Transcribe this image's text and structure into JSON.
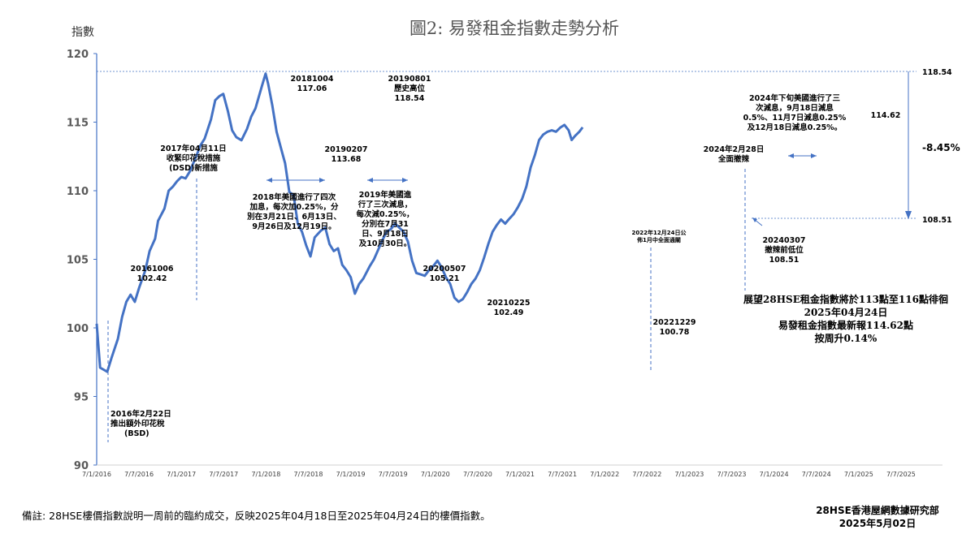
{
  "chart_data": {
    "type": "line",
    "title": "圖2: 易發租金指數走勢分析",
    "ylabel": "指數",
    "ylim": [
      90,
      120
    ],
    "yticks": [
      "90",
      "95",
      "100",
      "105",
      "110",
      "115",
      "120"
    ],
    "xticks": [
      "7/1/2016",
      "7/7/2016",
      "7/1/2017",
      "7/7/2017",
      "7/1/2018",
      "7/7/2018",
      "7/1/2019",
      "7/7/2019",
      "7/1/2020",
      "7/7/2020",
      "7/1/2021",
      "7/7/2021",
      "7/1/2022",
      "7/7/2022",
      "7/1/2023",
      "7/7/2023",
      "7/1/2024",
      "7/7/2024",
      "7/1/2025",
      "7/7/2025"
    ],
    "grid": false,
    "line_color": "#4472c4",
    "series": [
      {
        "values": [
          [
            0.0,
            100.3
          ],
          [
            0.08,
            97.1
          ],
          [
            0.25,
            96.8
          ],
          [
            0.35,
            97.8
          ],
          [
            0.5,
            99.2
          ],
          [
            0.6,
            100.8
          ],
          [
            0.7,
            101.9
          ],
          [
            0.8,
            102.42
          ],
          [
            0.9,
            101.9
          ],
          [
            1.0,
            102.9
          ],
          [
            1.15,
            104.2
          ],
          [
            1.25,
            105.6
          ],
          [
            1.38,
            106.5
          ],
          [
            1.45,
            107.8
          ],
          [
            1.6,
            108.7
          ],
          [
            1.7,
            110.0
          ],
          [
            1.8,
            110.3
          ],
          [
            1.9,
            110.7
          ],
          [
            2.0,
            111.0
          ],
          [
            2.1,
            110.9
          ],
          [
            2.2,
            111.4
          ],
          [
            2.35,
            112.5
          ],
          [
            2.45,
            113.3
          ],
          [
            2.55,
            113.8
          ],
          [
            2.7,
            115.2
          ],
          [
            2.8,
            116.6
          ],
          [
            2.9,
            116.9
          ],
          [
            2.99,
            117.06
          ],
          [
            3.1,
            115.8
          ],
          [
            3.2,
            114.4
          ],
          [
            3.3,
            113.9
          ],
          [
            3.42,
            113.68
          ],
          [
            3.55,
            114.5
          ],
          [
            3.65,
            115.4
          ],
          [
            3.75,
            116.0
          ],
          [
            3.9,
            117.6
          ],
          [
            3.99,
            118.54
          ],
          [
            4.05,
            117.8
          ],
          [
            4.15,
            116.2
          ],
          [
            4.25,
            114.3
          ],
          [
            4.38,
            112.8
          ],
          [
            4.45,
            112.0
          ],
          [
            4.55,
            109.9
          ],
          [
            4.65,
            109.7
          ],
          [
            4.75,
            107.6
          ],
          [
            4.85,
            107.0
          ],
          [
            4.95,
            106.0
          ],
          [
            5.05,
            105.21
          ],
          [
            5.15,
            106.6
          ],
          [
            5.3,
            107.1
          ],
          [
            5.4,
            107.3
          ],
          [
            5.5,
            106.1
          ],
          [
            5.6,
            105.6
          ],
          [
            5.7,
            105.8
          ],
          [
            5.8,
            104.6
          ],
          [
            5.9,
            104.2
          ],
          [
            6.0,
            103.7
          ],
          [
            6.1,
            102.49
          ],
          [
            6.2,
            103.2
          ],
          [
            6.3,
            103.6
          ],
          [
            6.45,
            104.5
          ],
          [
            6.55,
            105.0
          ],
          [
            6.65,
            105.7
          ],
          [
            6.75,
            106.4
          ],
          [
            6.85,
            107.0
          ],
          [
            6.95,
            107.2
          ],
          [
            7.05,
            107.6
          ],
          [
            7.15,
            107.3
          ],
          [
            7.25,
            107.0
          ],
          [
            7.35,
            106.3
          ],
          [
            7.45,
            104.9
          ],
          [
            7.55,
            104.0
          ],
          [
            7.65,
            103.9
          ],
          [
            7.75,
            103.8
          ],
          [
            7.85,
            104.2
          ],
          [
            7.95,
            104.5
          ],
          [
            8.05,
            104.9
          ],
          [
            8.15,
            104.4
          ],
          [
            8.25,
            103.7
          ],
          [
            8.35,
            103.2
          ],
          [
            8.45,
            102.2
          ],
          [
            8.55,
            101.9
          ],
          [
            8.65,
            102.1
          ],
          [
            8.75,
            102.6
          ],
          [
            8.85,
            103.2
          ],
          [
            8.95,
            103.6
          ],
          [
            9.05,
            104.2
          ],
          [
            9.15,
            105.1
          ],
          [
            9.25,
            106.1
          ],
          [
            9.35,
            107.0
          ],
          [
            9.45,
            107.5
          ],
          [
            9.55,
            107.9
          ],
          [
            9.65,
            107.6
          ],
          [
            9.73,
            107.9
          ],
          [
            9.85,
            108.3
          ],
          [
            9.95,
            108.8
          ],
          [
            10.05,
            109.4
          ],
          [
            10.15,
            110.3
          ],
          [
            10.25,
            111.7
          ],
          [
            10.35,
            112.6
          ],
          [
            10.45,
            113.7
          ],
          [
            10.55,
            114.1
          ],
          [
            10.65,
            114.3
          ],
          [
            10.75,
            114.4
          ],
          [
            10.85,
            114.3
          ],
          [
            10.95,
            114.6
          ],
          [
            11.05,
            114.8
          ],
          [
            11.15,
            114.4
          ],
          [
            11.22,
            113.7
          ],
          [
            11.3,
            114.0
          ],
          [
            11.4,
            114.3
          ],
          [
            11.48,
            114.62
          ]
        ]
      }
    ],
    "annotations": {
      "bsd_date": "2016年2月22日",
      "bsd_text": "推出額外印花稅",
      "bsd_abbr": "(BSD)",
      "p_2016_date": "20161006",
      "p_2016_value": "102.42",
      "dsd_date": "2017年04月11日",
      "dsd_text1": "收緊印花稅措施",
      "dsd_text2": "(DSD)新措施",
      "hike2018_l1": "2018年美國進行了四次",
      "hike2018_l2": "加息，每次加0.25%，分",
      "hike2018_l3": "別在3月21日、6月13日、",
      "hike2018_l4": "9月26日及12月19日。",
      "p_2018_date": "20181004",
      "p_2018_value": "117.06",
      "p_2019a_date": "20190207",
      "p_2019a_value": "113.68",
      "cut2019_l1": "2019年美國進",
      "cut2019_l2": "行了三次減息，",
      "cut2019_l3": "每次減0.25%，",
      "cut2019_l4": "分別在7月31",
      "cut2019_l5": "日、9月18日",
      "cut2019_l6": "及10月30日。",
      "peak_date": "20190801",
      "peak_label": "歷史高位",
      "peak_value": "118.54",
      "p_2020_date": "20200507",
      "p_2020_value": "105.21",
      "p_2021_date": "20210225",
      "p_2021_value": "102.49",
      "open2022_l1": "2022年12月24日公",
      "open2022_l2": "佈1月中全面通關",
      "p_2022_date": "20221229",
      "p_2022_value": "100.78",
      "relax2024_l1": "2024年2月28日",
      "relax2024_l2": "全面撤辣",
      "p_2024_date": "20240307",
      "p_2024_label": "撤辣前低位",
      "p_2024_value": "108.51",
      "cut2024_l1": "2024年下旬美國進行了三",
      "cut2024_l2": "次減息，9月18日減息",
      "cut2024_l3": "0.5%、11月7日減息0.25%",
      "cut2024_l4": "及12月18日減息0.25%。",
      "latest_value": "114.62",
      "ref_high": "118.54",
      "ref_low": "108.51",
      "pct_change": "-8.45%"
    },
    "outlook": {
      "l1": "展望28HSE租金指數將於113點至116點徘徊",
      "l2": "2025年04月24日",
      "l3": "易發租金指數最新報114.62點",
      "l4": "按周升0.14%"
    }
  },
  "footer": {
    "note": "備註: 28HSE樓價指數說明一周前的臨約成交，反映2025年04月18日至2025年04月24日的樓價指數。",
    "org": "28HSE香港屋網數據研究部",
    "date": "2025年5月02日"
  }
}
